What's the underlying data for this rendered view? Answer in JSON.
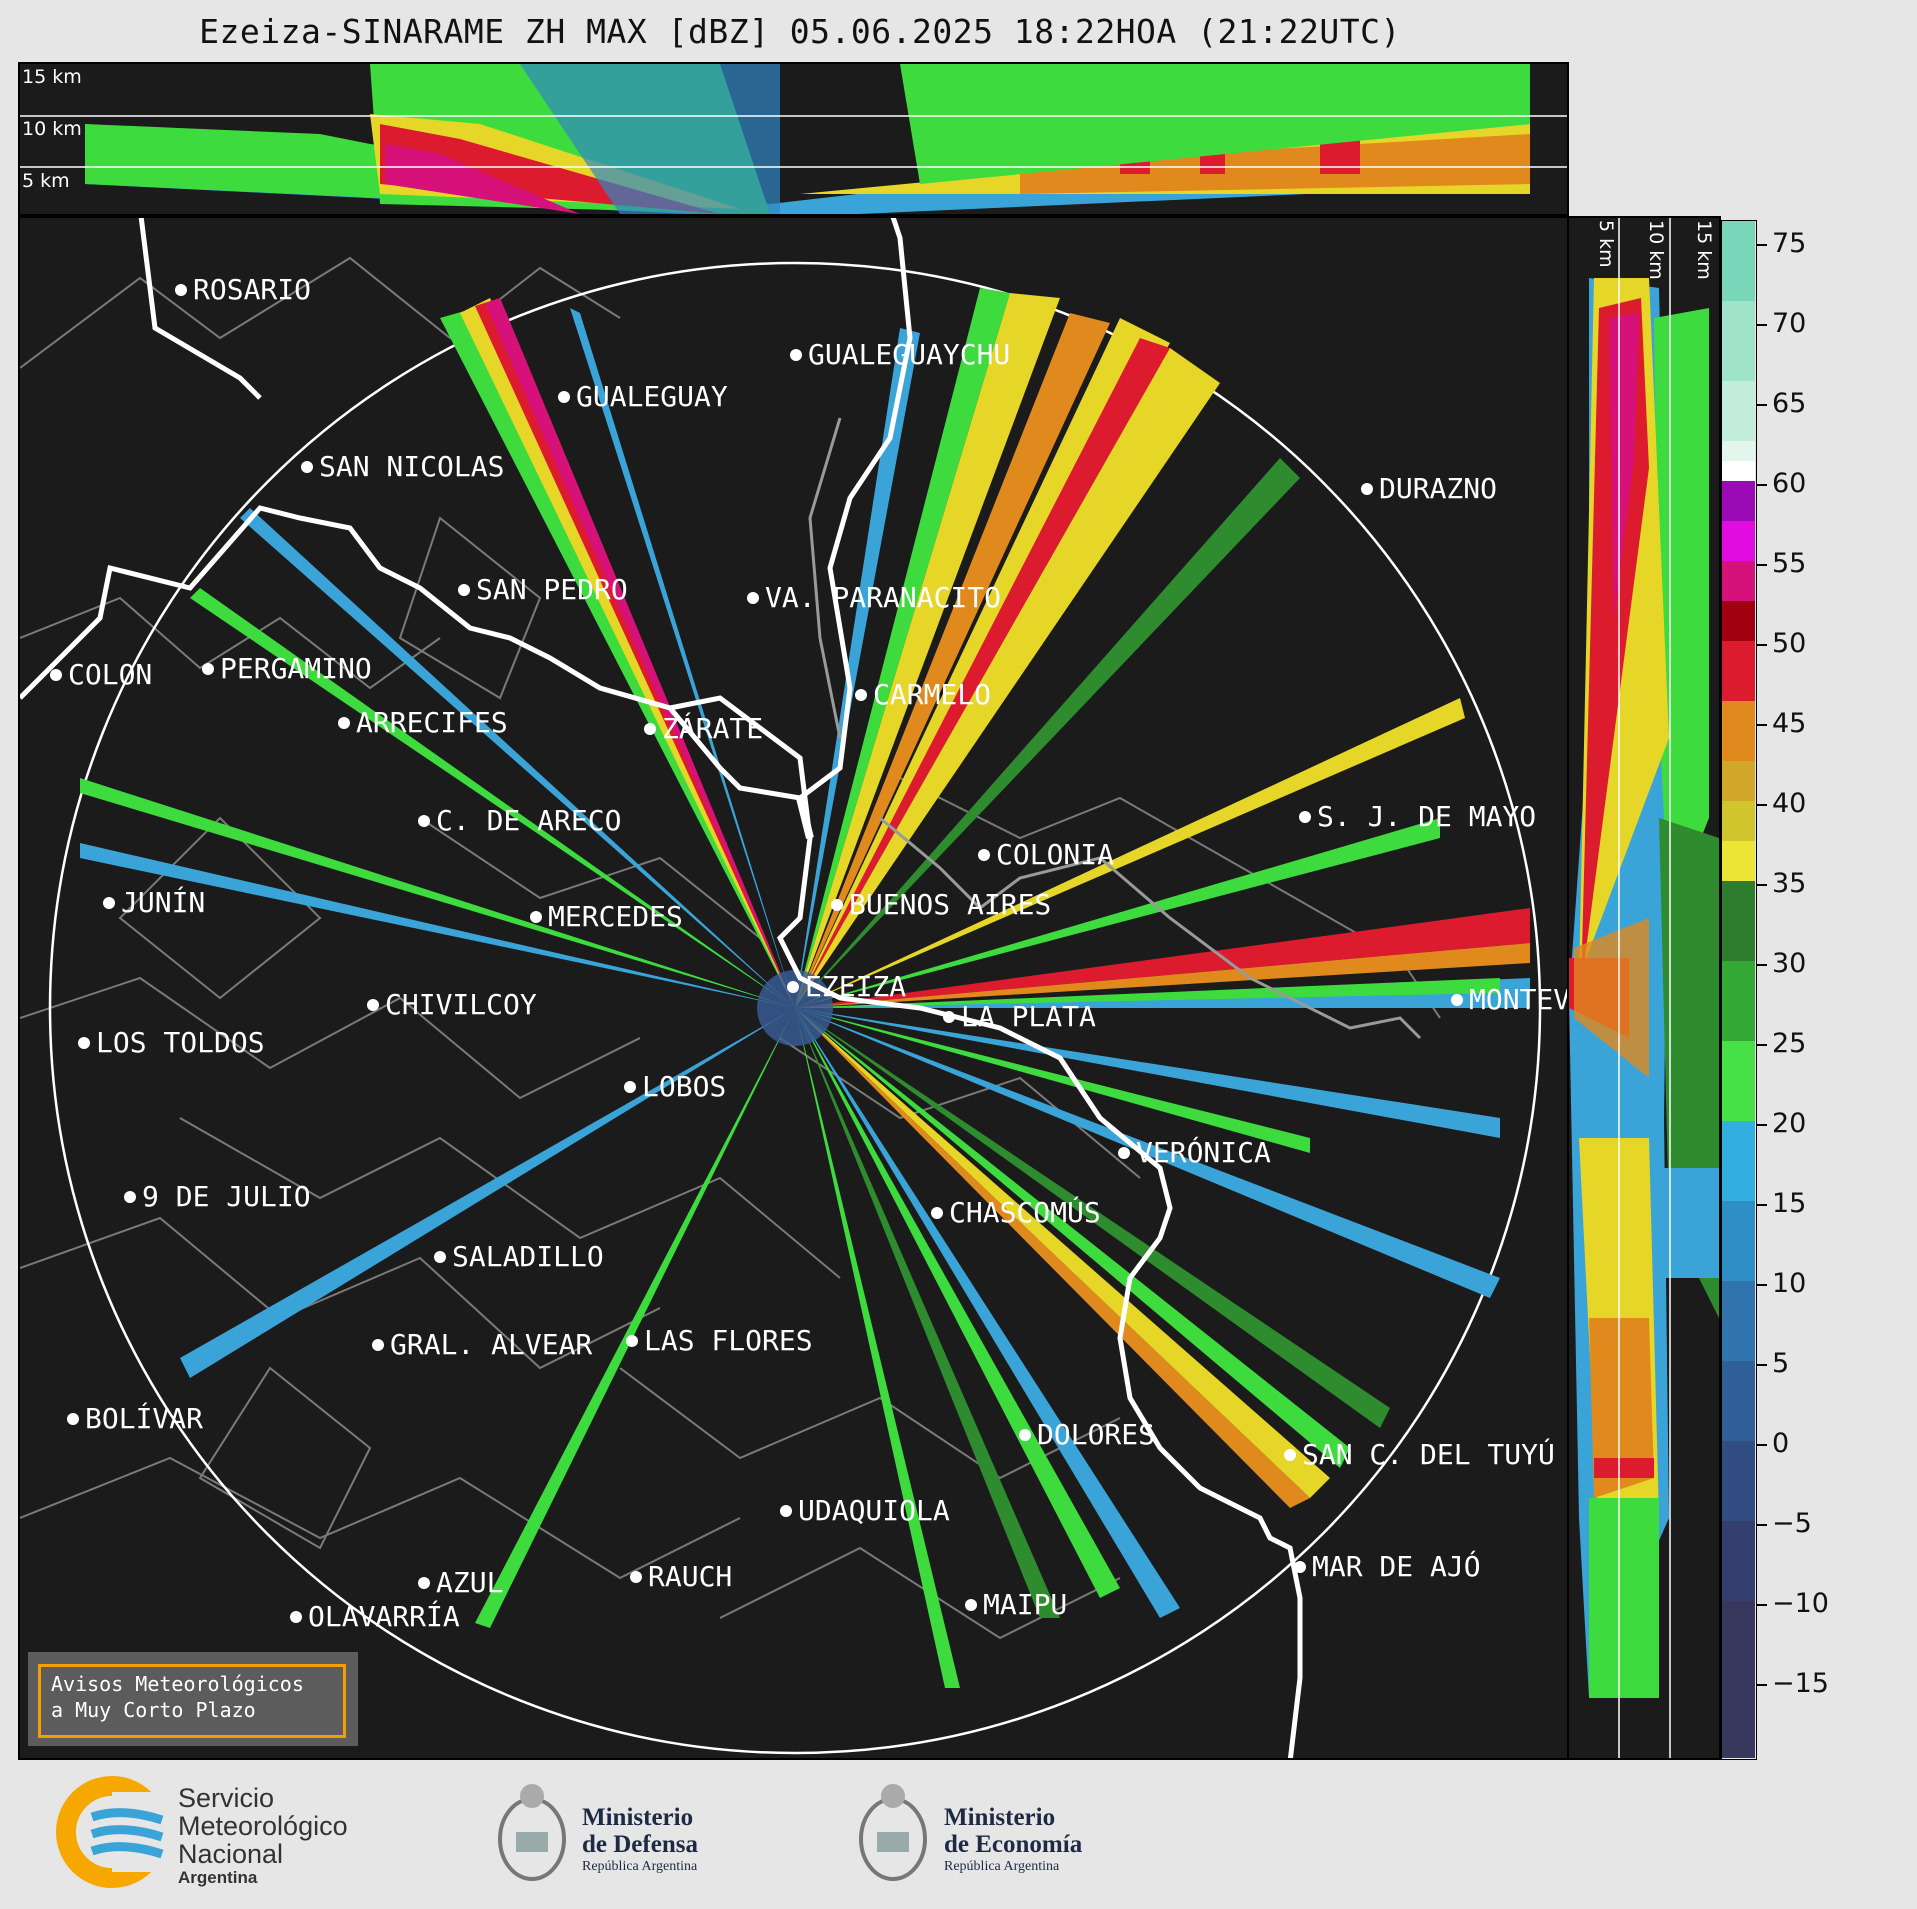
{
  "title": "Ezeiza-SINARAME ZH MAX [dBZ] 05.06.2025 18:22HOA (21:22UTC)",
  "top_panel_labels": [
    "15 km",
    "10 km",
    "5 km"
  ],
  "side_panel_labels": [
    "5 km",
    "10 km",
    "15 km"
  ],
  "colorbar": {
    "ticks": [
      "75",
      "70",
      "65",
      "60",
      "55",
      "50",
      "45",
      "40",
      "35",
      "30",
      "25",
      "20",
      "15",
      "10",
      "5",
      "0",
      "−5",
      "−10",
      "−15"
    ]
  },
  "cities": [
    "ROSARIO",
    "GUALEGUAYCHU",
    "GUALEGUAY",
    "SAN NICOLAS",
    "DURAZNO",
    "SAN PEDRO",
    "VA. PARANACITO",
    "COLON",
    "PERGAMINO",
    "CARMELO",
    "ARRECIFES",
    "ZÁRATE",
    "S. J. DE MAYO",
    "C. DE ARECO",
    "COLONIA",
    "JUNÍN",
    "BUENOS AIRES",
    "MERCEDES",
    "EZEIZA",
    "MONTEV",
    "LA PLATA",
    "CHIVILCOY",
    "LOS TOLDOS",
    "LOBOS",
    "VERÓNICA",
    "9 DE JULIO",
    "CHASCOMÚS",
    "SALADILLO",
    "GRAL. ALVEAR",
    "LAS FLORES",
    "BOLÍVAR",
    "DOLORES",
    "SAN C. DEL TUYÚ",
    "UDAQUIOLA",
    "MAR DE AJÓ",
    "AZUL",
    "RAUCH",
    "MAIPU",
    "OLAVARRÍA"
  ],
  "avisos": {
    "line1": "Avisos Meteorológicos",
    "line2": "a Muy Corto Plazo"
  },
  "logos": {
    "smn": {
      "line1": "Servicio",
      "line2": "Meteorológico",
      "line3": "Nacional",
      "line4": "Argentina"
    },
    "defensa": {
      "line1": "Ministerio",
      "line2": "de Defensa",
      "line3": "República Argentina"
    },
    "economia": {
      "line1": "Ministerio",
      "line2": "de Economía",
      "line3": "República Argentina"
    }
  }
}
